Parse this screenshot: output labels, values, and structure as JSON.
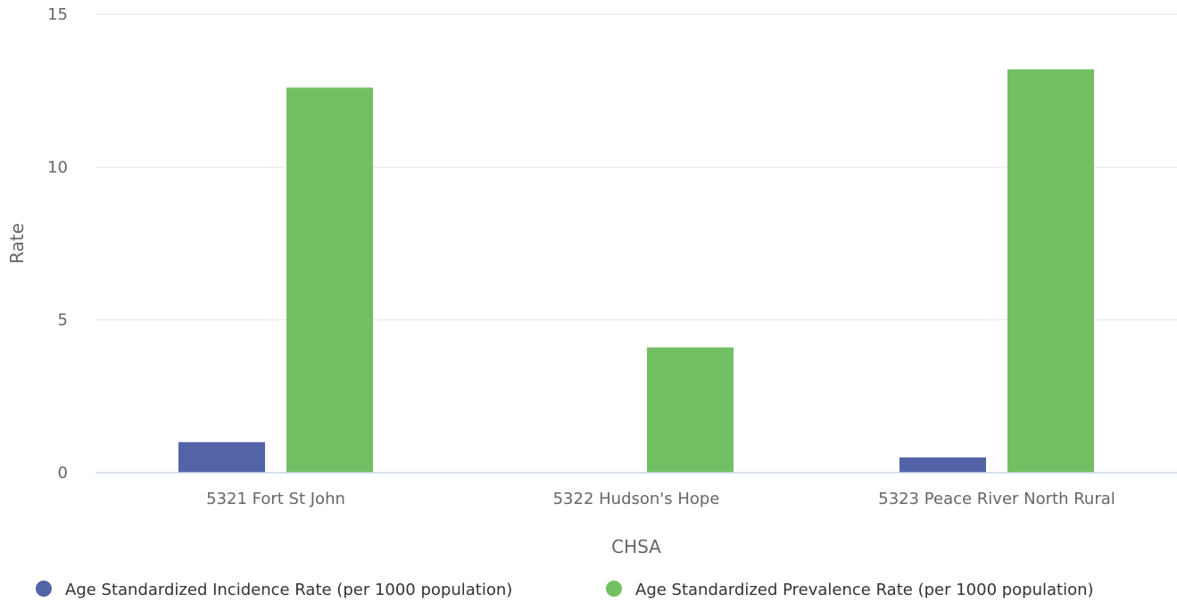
{
  "chart_data": {
    "type": "bar",
    "categories": [
      "5321 Fort St John",
      "5322 Hudson's Hope",
      "5323 Peace River North Rural"
    ],
    "series": [
      {
        "name": "Age Standardized Incidence Rate (per 1000 population)",
        "values": [
          1.0,
          0,
          0.5
        ],
        "color": "#5363a7"
      },
      {
        "name": "Age Standardized Prevalence Rate (per 1000 population)",
        "values": [
          12.6,
          4.1,
          13.2
        ],
        "color": "#72c063"
      }
    ],
    "xlabel": "CHSA",
    "ylabel": "Rate",
    "ylim": [
      0,
      15
    ],
    "yticks": [
      0,
      5,
      10,
      15
    ],
    "grid": true,
    "legend_position": "bottom"
  }
}
